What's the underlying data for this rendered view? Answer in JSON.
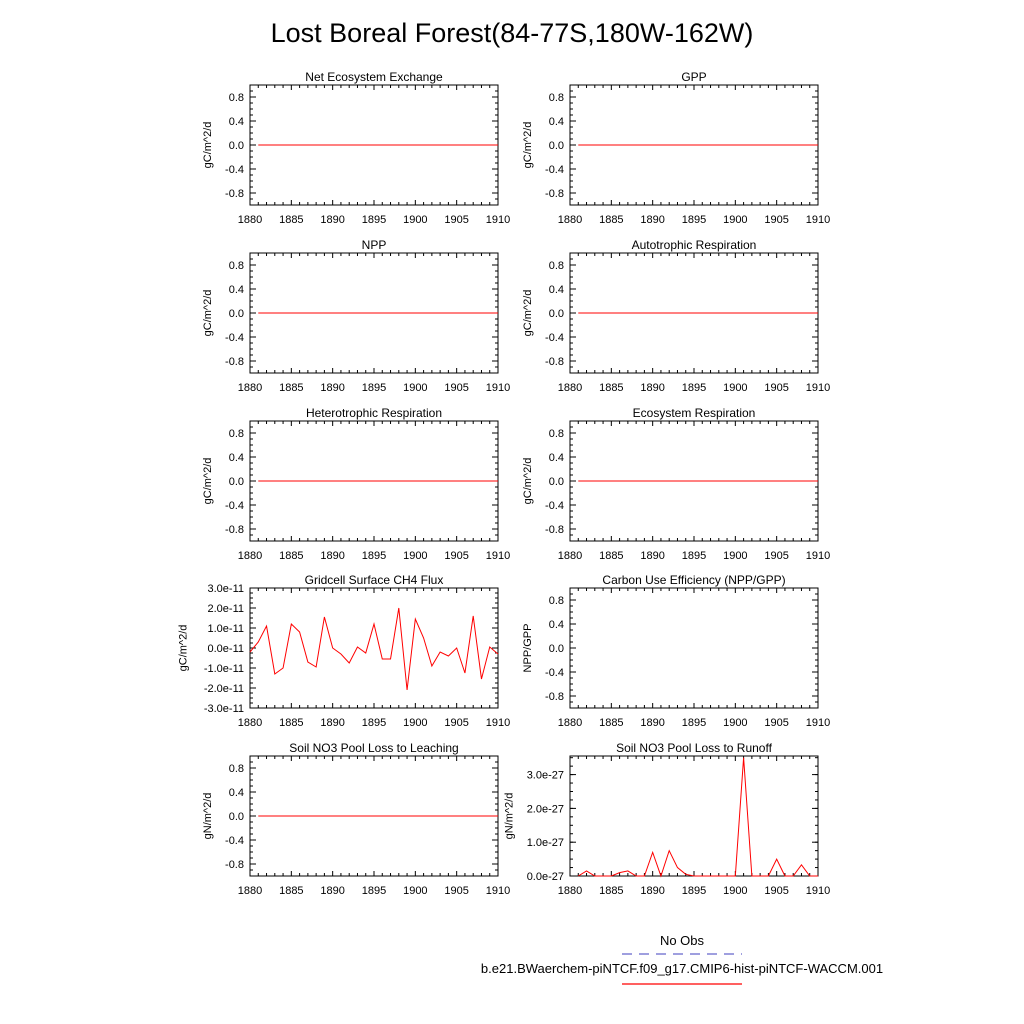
{
  "figure": {
    "title": "Lost Boreal Forest(84-77S,180W-162W)"
  },
  "legend": {
    "obs_label": "No Obs",
    "model_label": "b.e21.BWaerchem-piNTCF.f09_g17.CMIP6-hist-piNTCF-WACCM.001",
    "obs_color": "#6666cc",
    "model_color": "#ff0000"
  },
  "colors": {
    "series": "#ff0000"
  },
  "chart_data": [
    {
      "type": "line",
      "title": "Net Ecosystem Exchange",
      "ylabel": "gC/m^2/d",
      "xlim": [
        1880,
        1910
      ],
      "ylim": [
        -1,
        1
      ],
      "xticks": [
        1880,
        1885,
        1890,
        1895,
        1900,
        1905,
        1910
      ],
      "yticks": [
        -0.8,
        -0.4,
        0.0,
        0.4,
        0.8
      ],
      "ytick_labels": [
        "-0.8",
        "-0.4",
        "0.0",
        "0.4",
        "0.8"
      ],
      "x": [
        1881,
        1910
      ],
      "series": [
        {
          "values": [
            0,
            0
          ]
        }
      ]
    },
    {
      "type": "line",
      "title": "GPP",
      "ylabel": "gC/m^2/d",
      "xlim": [
        1880,
        1910
      ],
      "ylim": [
        -1,
        1
      ],
      "xticks": [
        1880,
        1885,
        1890,
        1895,
        1900,
        1905,
        1910
      ],
      "yticks": [
        -0.8,
        -0.4,
        0.0,
        0.4,
        0.8
      ],
      "ytick_labels": [
        "-0.8",
        "-0.4",
        "0.0",
        "0.4",
        "0.8"
      ],
      "x": [
        1881,
        1910
      ],
      "series": [
        {
          "values": [
            0,
            0
          ]
        }
      ]
    },
    {
      "type": "line",
      "title": "NPP",
      "ylabel": "gC/m^2/d",
      "xlim": [
        1880,
        1910
      ],
      "ylim": [
        -1,
        1
      ],
      "xticks": [
        1880,
        1885,
        1890,
        1895,
        1900,
        1905,
        1910
      ],
      "yticks": [
        -0.8,
        -0.4,
        0.0,
        0.4,
        0.8
      ],
      "ytick_labels": [
        "-0.8",
        "-0.4",
        "0.0",
        "0.4",
        "0.8"
      ],
      "x": [
        1881,
        1910
      ],
      "series": [
        {
          "values": [
            0,
            0
          ]
        }
      ]
    },
    {
      "type": "line",
      "title": "Autotrophic Respiration",
      "ylabel": "gC/m^2/d",
      "xlim": [
        1880,
        1910
      ],
      "ylim": [
        -1,
        1
      ],
      "xticks": [
        1880,
        1885,
        1890,
        1895,
        1900,
        1905,
        1910
      ],
      "yticks": [
        -0.8,
        -0.4,
        0.0,
        0.4,
        0.8
      ],
      "ytick_labels": [
        "-0.8",
        "-0.4",
        "0.0",
        "0.4",
        "0.8"
      ],
      "x": [
        1881,
        1910
      ],
      "series": [
        {
          "values": [
            0,
            0
          ]
        }
      ]
    },
    {
      "type": "line",
      "title": "Heterotrophic Respiration",
      "ylabel": "gC/m^2/d",
      "xlim": [
        1880,
        1910
      ],
      "ylim": [
        -1,
        1
      ],
      "xticks": [
        1880,
        1885,
        1890,
        1895,
        1900,
        1905,
        1910
      ],
      "yticks": [
        -0.8,
        -0.4,
        0.0,
        0.4,
        0.8
      ],
      "ytick_labels": [
        "-0.8",
        "-0.4",
        "0.0",
        "0.4",
        "0.8"
      ],
      "x": [
        1881,
        1910
      ],
      "series": [
        {
          "values": [
            0,
            0
          ]
        }
      ]
    },
    {
      "type": "line",
      "title": "Ecosystem Respiration",
      "ylabel": "gC/m^2/d",
      "xlim": [
        1880,
        1910
      ],
      "ylim": [
        -1,
        1
      ],
      "xticks": [
        1880,
        1885,
        1890,
        1895,
        1900,
        1905,
        1910
      ],
      "yticks": [
        -0.8,
        -0.4,
        0.0,
        0.4,
        0.8
      ],
      "ytick_labels": [
        "-0.8",
        "-0.4",
        "0.0",
        "0.4",
        "0.8"
      ],
      "x": [
        1881,
        1910
      ],
      "series": [
        {
          "values": [
            0,
            0
          ]
        }
      ]
    },
    {
      "type": "line",
      "title": "Gridcell Surface CH4 Flux",
      "ylabel": "gC/m^2/d",
      "xlim": [
        1880,
        1910
      ],
      "ylim": [
        -3e-11,
        3e-11
      ],
      "xticks": [
        1880,
        1885,
        1890,
        1895,
        1900,
        1905,
        1910
      ],
      "yticks": [
        -3e-11,
        -2e-11,
        -1e-11,
        0,
        1e-11,
        2e-11,
        3e-11
      ],
      "ytick_labels": [
        "-3.0e-11",
        "-2.0e-11",
        "-1.0e-11",
        "0.0e-11",
        "1.0e-11",
        "2.0e-11",
        "3.0e-11"
      ],
      "x": [
        1880,
        1881,
        1882,
        1883,
        1884,
        1885,
        1886,
        1887,
        1888,
        1889,
        1890,
        1891,
        1892,
        1893,
        1894,
        1895,
        1896,
        1897,
        1898,
        1899,
        1900,
        1901,
        1902,
        1903,
        1904,
        1905,
        1906,
        1907,
        1908,
        1909,
        1910
      ],
      "series": [
        {
          "values": [
            -2e-12,
            3e-12,
            1.1e-11,
            -1.3e-11,
            -1e-11,
            1.2e-11,
            8e-12,
            -7e-12,
            -9.5e-12,
            1.55e-11,
            0.0,
            -3e-12,
            -7.5e-12,
            5e-13,
            -2.5e-12,
            1.2e-11,
            -5.5e-12,
            -5.5e-12,
            2e-11,
            -2.1e-11,
            1.45e-11,
            5e-12,
            -9e-12,
            -2e-12,
            -4e-12,
            0.0,
            -1.25e-11,
            1.6e-11,
            -1.55e-11,
            5e-13,
            -3e-12
          ]
        }
      ]
    },
    {
      "type": "line",
      "title": "Carbon Use Efficiency (NPP/GPP)",
      "ylabel": "NPP/GPP",
      "xlim": [
        1880,
        1910
      ],
      "ylim": [
        -1,
        1
      ],
      "xticks": [
        1880,
        1885,
        1890,
        1895,
        1900,
        1905,
        1910
      ],
      "yticks": [
        -0.8,
        -0.4,
        0.0,
        0.4,
        0.8
      ],
      "ytick_labels": [
        "-0.8",
        "-0.4",
        "0.0",
        "0.4",
        "0.8"
      ],
      "x": [],
      "series": [
        {
          "values": []
        }
      ]
    },
    {
      "type": "line",
      "title": "Soil NO3 Pool Loss to Leaching",
      "ylabel": "gN/m^2/d",
      "xlim": [
        1880,
        1910
      ],
      "ylim": [
        -1,
        1
      ],
      "xticks": [
        1880,
        1885,
        1890,
        1895,
        1900,
        1905,
        1910
      ],
      "yticks": [
        -0.8,
        -0.4,
        0.0,
        0.4,
        0.8
      ],
      "ytick_labels": [
        "-0.8",
        "-0.4",
        "0.0",
        "0.4",
        "0.8"
      ],
      "x": [
        1881,
        1910
      ],
      "series": [
        {
          "values": [
            0,
            0
          ]
        }
      ]
    },
    {
      "type": "line",
      "title": "Soil NO3 Pool Loss to Runoff",
      "ylabel": "gN/m^2/d",
      "xlim": [
        1880,
        1910
      ],
      "ylim": [
        0,
        3.55e-27
      ],
      "xticks": [
        1880,
        1885,
        1890,
        1895,
        1900,
        1905,
        1910
      ],
      "yticks": [
        0,
        1e-27,
        2e-27,
        3e-27
      ],
      "ytick_labels": [
        "0.0e-27",
        "1.0e-27",
        "2.0e-27",
        "3.0e-27"
      ],
      "x": [
        1881,
        1882,
        1883,
        1884,
        1885,
        1886,
        1887,
        1888,
        1889,
        1890,
        1891,
        1892,
        1893,
        1894,
        1895,
        1896,
        1897,
        1898,
        1899,
        1900,
        1901,
        1902,
        1903,
        1904,
        1905,
        1906,
        1907,
        1908,
        1909,
        1910
      ],
      "series": [
        {
          "values": [
            0.0,
            1.5e-28,
            0.0,
            0.0,
            0.0,
            1e-28,
            1.5e-28,
            0.0,
            0.0,
            7e-28,
            0.0,
            7.5e-28,
            2.5e-28,
            5e-29,
            0.0,
            0.0,
            0.0,
            0.0,
            0.0,
            0.0,
            3.5e-27,
            0.0,
            0.0,
            0.0,
            5e-28,
            0.0,
            0.0,
            3.3e-28,
            0.0,
            0.0
          ]
        }
      ]
    }
  ]
}
